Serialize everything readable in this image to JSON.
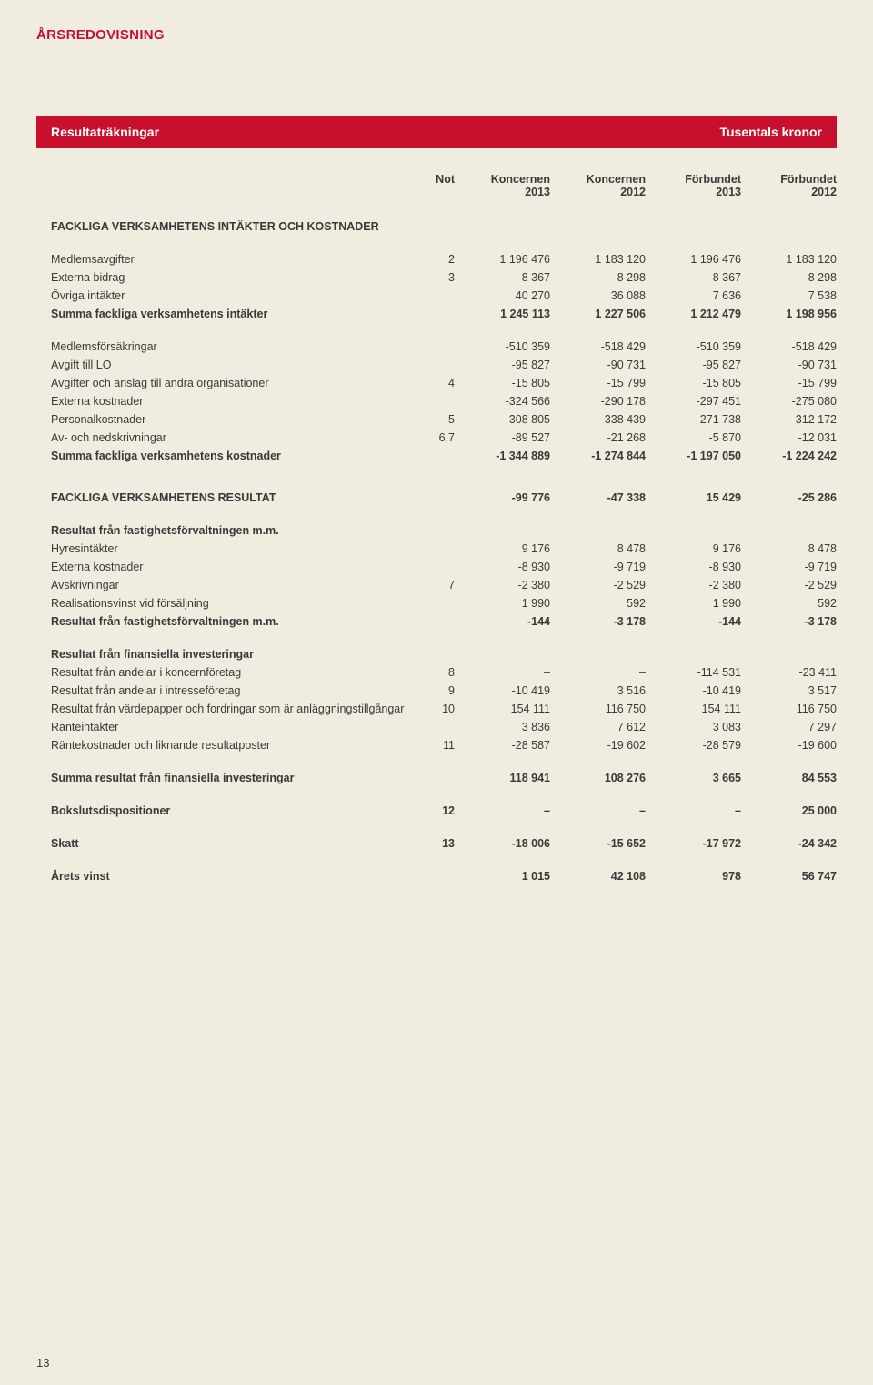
{
  "header": {
    "section": "ÅRSREDOVISNING"
  },
  "banner": {
    "left": "Resultaträkningar",
    "right": "Tusentals kronor"
  },
  "columns": {
    "not": "Not",
    "c1": "Koncernen\n2013",
    "c2": "Koncernen\n2012",
    "c3": "Förbundet\n2013",
    "c4": "Förbundet\n2012"
  },
  "group1": {
    "title": "FACKLIGA VERKSAMHETENS INTÄKTER OCH KOSTNADER",
    "rows": [
      {
        "label": "Medlemsavgifter",
        "not": "2",
        "c1": "1 196 476",
        "c2": "1 183 120",
        "c3": "1 196 476",
        "c4": "1 183 120"
      },
      {
        "label": "Externa bidrag",
        "not": "3",
        "c1": "8 367",
        "c2": "8 298",
        "c3": "8 367",
        "c4": "8 298"
      },
      {
        "label": "Övriga intäkter",
        "not": "",
        "c1": "40 270",
        "c2": "36 088",
        "c3": "7 636",
        "c4": "7 538"
      },
      {
        "label": "Summa fackliga verksamhetens intäkter",
        "not": "",
        "c1": "1 245 113",
        "c2": "1 227 506",
        "c3": "1 212 479",
        "c4": "1 198 956",
        "bold": true
      }
    ]
  },
  "group2": {
    "rows": [
      {
        "label": "Medlemsförsäkringar",
        "not": "",
        "c1": "-510 359",
        "c2": "-518 429",
        "c3": "-510 359",
        "c4": "-518 429"
      },
      {
        "label": "Avgift till LO",
        "not": "",
        "c1": "-95 827",
        "c2": "-90 731",
        "c3": "-95 827",
        "c4": "-90 731"
      },
      {
        "label": "Avgifter och anslag till andra organisationer",
        "not": "4",
        "c1": "-15 805",
        "c2": "-15 799",
        "c3": "-15 805",
        "c4": "-15 799"
      },
      {
        "label": "Externa kostnader",
        "not": "",
        "c1": "-324 566",
        "c2": "-290 178",
        "c3": "-297 451",
        "c4": "-275 080"
      },
      {
        "label": "Personalkostnader",
        "not": "5",
        "c1": "-308 805",
        "c2": "-338 439",
        "c3": "-271 738",
        "c4": "-312 172"
      },
      {
        "label": "Av- och nedskrivningar",
        "not": "6,7",
        "c1": "-89 527",
        "c2": "-21 268",
        "c3": "-5 870",
        "c4": "-12 031"
      },
      {
        "label": "Summa fackliga verksamhetens kostnader",
        "not": "",
        "c1": "-1 344 889",
        "c2": "-1 274 844",
        "c3": "-1 197 050",
        "c4": "-1 224 242",
        "bold": true
      }
    ]
  },
  "resultRow1": {
    "label": "FACKLIGA VERKSAMHETENS RESULTAT",
    "c1": "-99 776",
    "c2": "-47 338",
    "c3": "15 429",
    "c4": "-25 286"
  },
  "group3": {
    "title": "Resultat från fastighetsförvaltningen m.m.",
    "rows": [
      {
        "label": "Hyresintäkter",
        "not": "",
        "c1": "9 176",
        "c2": "8 478",
        "c3": "9 176",
        "c4": "8 478"
      },
      {
        "label": "Externa kostnader",
        "not": "",
        "c1": "-8 930",
        "c2": "-9 719",
        "c3": "-8 930",
        "c4": "-9 719"
      },
      {
        "label": "Avskrivningar",
        "not": "7",
        "c1": "-2 380",
        "c2": "-2 529",
        "c3": "-2 380",
        "c4": "-2 529"
      },
      {
        "label": "Realisationsvinst vid försäljning",
        "not": "",
        "c1": "1 990",
        "c2": "592",
        "c3": "1 990",
        "c4": "592"
      }
    ],
    "sum": {
      "label": "Resultat från fastighetsförvaltningen m.m.",
      "c1": "-144",
      "c2": "-3 178",
      "c3": "-144",
      "c4": "-3 178"
    }
  },
  "group4": {
    "title": "Resultat från finansiella investeringar",
    "rows": [
      {
        "label": "Resultat från andelar i koncernföretag",
        "not": "8",
        "c1": "–",
        "c2": "–",
        "c3": "-114 531",
        "c4": "-23 411"
      },
      {
        "label": "Resultat från andelar i intresseföretag",
        "not": "9",
        "c1": "-10 419",
        "c2": "3 516",
        "c3": "-10 419",
        "c4": "3 517"
      },
      {
        "label": "Resultat från värdepapper och fordringar som är anläggningstillgångar",
        "not": "10",
        "c1": "154 111",
        "c2": "116 750",
        "c3": "154 111",
        "c4": "116 750"
      },
      {
        "label": "Ränteintäkter",
        "not": "",
        "c1": "3 836",
        "c2": "7 612",
        "c3": "3 083",
        "c4": "7 297"
      },
      {
        "label": "Räntekostnader och liknande resultatposter",
        "not": "11",
        "c1": "-28 587",
        "c2": "-19 602",
        "c3": "-28 579",
        "c4": "-19 600"
      }
    ],
    "sum": {
      "label": "Summa resultat från finansiella investeringar",
      "c1": "118 941",
      "c2": "108 276",
      "c3": "3 665",
      "c4": "84 553"
    }
  },
  "boksluts": {
    "label": "Bokslutsdispositioner",
    "not": "12",
    "c1": "–",
    "c2": "–",
    "c3": "–",
    "c4": "25 000"
  },
  "skatt": {
    "label": "Skatt",
    "not": "13",
    "c1": "-18 006",
    "c2": "-15 652",
    "c3": "-17 972",
    "c4": "-24 342"
  },
  "vinst": {
    "label": "Årets vinst",
    "c1": "1 015",
    "c2": "42 108",
    "c3": "978",
    "c4": "56 747"
  },
  "pageNum": "13"
}
